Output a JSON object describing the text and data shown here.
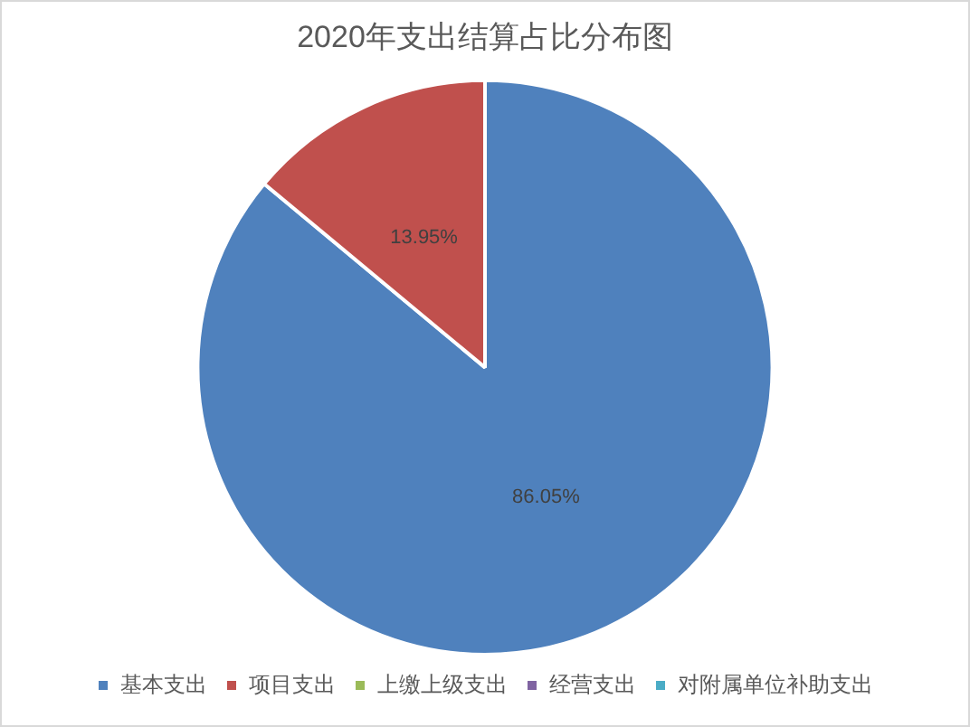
{
  "chart_data": {
    "type": "pie",
    "title": "2020年支出结算占比分布图",
    "categories": [
      "基本支出",
      "项目支出",
      "上缴上级支出",
      "经营支出",
      "对附属单位补助支出"
    ],
    "values": [
      86.05,
      13.95,
      0,
      0,
      0
    ],
    "colors": [
      "#4f81bd",
      "#c0504d",
      "#9bbb59",
      "#8064a2",
      "#4bacc6"
    ],
    "value_labels": [
      "86.05%",
      "13.95%",
      null,
      null,
      null
    ],
    "legend": "bottom"
  }
}
